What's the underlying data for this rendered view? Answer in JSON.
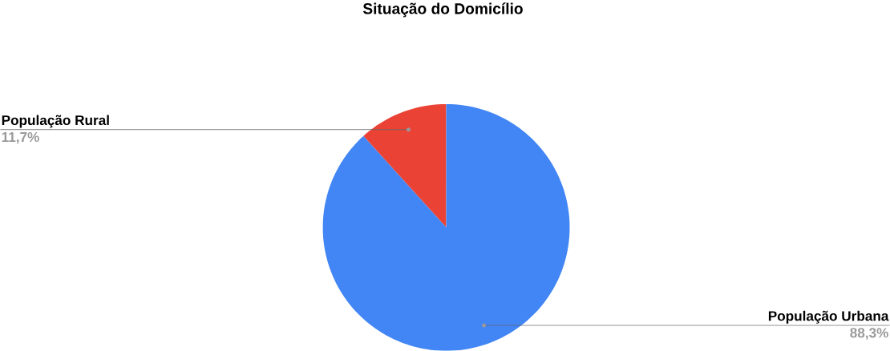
{
  "chart_data": {
    "type": "pie",
    "title": "Situação do Domicílio",
    "categories": [
      "População Rural",
      "População Urbana"
    ],
    "values": [
      11.7,
      88.3
    ],
    "colors": [
      "#ea4335",
      "#4285f4"
    ],
    "value_labels": [
      "11,7%",
      "88,3%"
    ]
  }
}
